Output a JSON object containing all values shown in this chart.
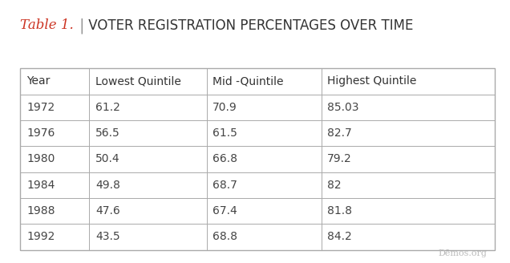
{
  "title_italic": "Table 1.",
  "title_main": " VOTER REGISTRATION PERCENTAGES OVER TIME",
  "title_italic_color": "#cc3322",
  "title_main_color": "#333333",
  "separator_color": "#999999",
  "background_color": "#ffffff",
  "table_border_color": "#aaaaaa",
  "columns": [
    "Year",
    "Lowest Quintile",
    "Mid -Quintile",
    "Highest Quintile"
  ],
  "rows": [
    [
      "1972",
      "61.2",
      "70.9",
      "85.03"
    ],
    [
      "1976",
      "56.5",
      "61.5",
      "82.7"
    ],
    [
      "1980",
      "50.4",
      "66.8",
      "79.2"
    ],
    [
      "1984",
      "49.8",
      "68.7",
      "82"
    ],
    [
      "1988",
      "47.6",
      "67.4",
      "81.8"
    ],
    [
      "1992",
      "43.5",
      "68.8",
      "84.2"
    ]
  ],
  "watermark": "Dēmos.org",
  "watermark_color": "#bbbbbb",
  "header_font_size": 10,
  "data_font_size": 10,
  "title_font_size_italic": 12,
  "title_font_size_main": 12
}
